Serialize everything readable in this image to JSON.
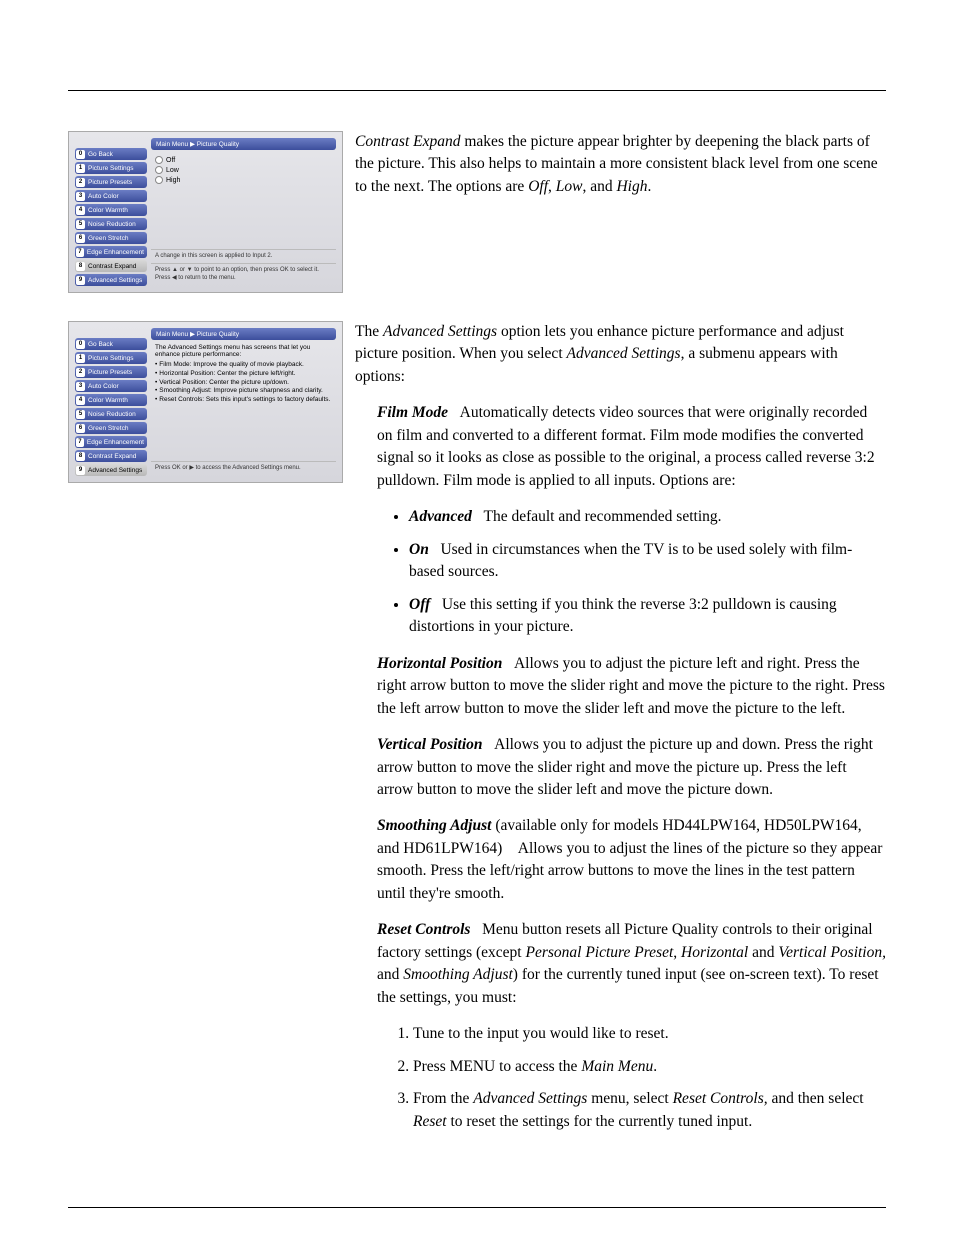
{
  "osd": {
    "titlebar": "Main Menu ▶ Picture Quality",
    "sidebar": [
      {
        "n": "0",
        "label": "Go Back"
      },
      {
        "n": "1",
        "label": "Picture Settings"
      },
      {
        "n": "2",
        "label": "Picture Presets"
      },
      {
        "n": "3",
        "label": "Auto Color"
      },
      {
        "n": "4",
        "label": "Color Warmth"
      },
      {
        "n": "5",
        "label": "Noise Reduction"
      },
      {
        "n": "6",
        "label": "Green Stretch"
      },
      {
        "n": "7",
        "label": "Edge Enhancement"
      },
      {
        "n": "8",
        "label": "Contrast Expand"
      },
      {
        "n": "9",
        "label": "Advanced Settings"
      }
    ],
    "fig1": {
      "selectedIndex": 8,
      "radios": [
        "Off",
        "Low",
        "High"
      ],
      "hintA": "A change in this screen is applied to Input 2.",
      "hintB": "Press ▲ or ▼ to point to an option, then press OK to select it. Press ◀ to return to the menu."
    },
    "fig2": {
      "selectedIndex": 9,
      "intro": "The Advanced Settings menu has screens that let you enhance picture performance:",
      "bullets": [
        "Film Mode: Improve the quality of movie playback.",
        "Horizontal Position: Center the picture left/right.",
        "Vertical Position: Center the picture up/down.",
        "Smoothing Adjust: Improve picture sharpness and clarity.",
        "Reset Controls: Sets this input's settings to factory defaults."
      ],
      "hint": "Press OK or ▶ to access the Advanced Settings menu."
    }
  },
  "body": {
    "contrast": {
      "lead": "Contrast Expand",
      "text": " makes the picture appear brighter by deepening the black parts of the picture. This also helps to maintain a more consistent black level from one scene to the next. The options are ",
      "opts": [
        "Off",
        "Low",
        "High"
      ]
    },
    "adv_intro_a": "The ",
    "adv_intro_name": "Advanced Settings",
    "adv_intro_b": " option lets you enhance picture performance and adjust picture position. When you select ",
    "adv_intro_c": ", a submenu appears with options:",
    "film": {
      "name": "Film Mode",
      "text": "Automatically detects video sources that were originally recorded on film and converted to a different format. Film mode modifies the converted signal so it looks as close as possible to the original, a process called reverse 3:2 pulldown. Film mode is applied to all inputs. Options are:",
      "opts": [
        {
          "name": "Advanced",
          "text": "The default and recommended setting."
        },
        {
          "name": "On",
          "text": "Used in circumstances when the TV is to be used solely with film-based sources."
        },
        {
          "name": "Off",
          "text": "Use this setting if you think the reverse 3:2 pulldown is causing distortions in your picture."
        }
      ]
    },
    "hpos": {
      "name": "Horizontal Position",
      "text": "Allows you to adjust the picture left and right. Press the right arrow button to move the slider right and move the picture to the right. Press the left arrow button to move the slider left and move the picture to the left."
    },
    "vpos": {
      "name": "Vertical Position",
      "text": "Allows you to adjust the picture up and down. Press the right arrow button to move the slider right and move the picture up. Press the left arrow button to move the slider left and move the picture down."
    },
    "smooth": {
      "name": "Smoothing Adjust",
      "paren": " (available only for models HD44LPW164, HD50LPW164, and HD61LPW164) ",
      "text": "Allows you to adjust the lines of the picture so they appear smooth. Press the left/right arrow buttons to move the lines in the test pattern until they're smooth."
    },
    "reset": {
      "name": "Reset Controls",
      "a": "Menu button resets all Picture Quality controls to their original factory settings (except ",
      "ex1": "Personal Picture Preset",
      "ex2": "Horizontal",
      "ex3": "Vertical Position,",
      "ex4": "Smoothing Adjust",
      "b": ") for the currently tuned input (see on-screen text). To reset the settings, you must:",
      "steps": [
        {
          "t": "Tune to the input you would like to reset."
        },
        {
          "a": "Press MENU to access the ",
          "i": "Main Menu",
          "b": "."
        },
        {
          "a": "From the ",
          "i1": "Advanced Settings",
          "b": " menu, select ",
          "i2": "Reset Controls,",
          "c": " and then select ",
          "i3": "Reset",
          "d": " to reset the settings for the currently tuned input."
        }
      ]
    }
  }
}
